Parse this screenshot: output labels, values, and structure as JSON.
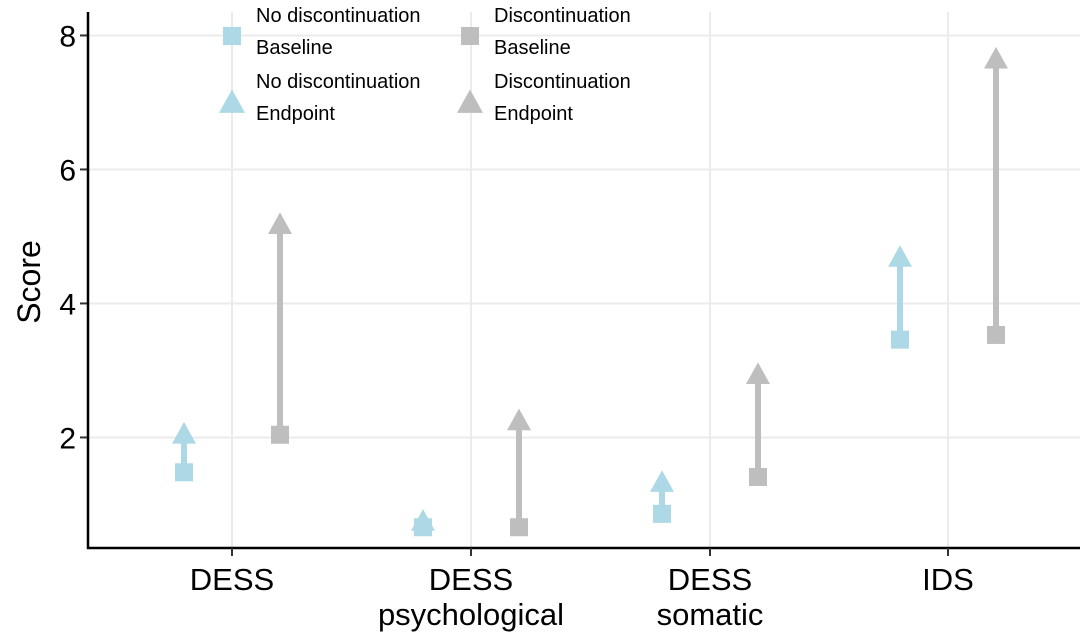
{
  "chart_data": {
    "type": "scatter",
    "title": "",
    "xlabel": "",
    "ylabel": "Score",
    "ylim": [
      0.35,
      8.35
    ],
    "yticks": [
      2,
      4,
      6,
      8
    ],
    "categories": [
      {
        "lines": [
          "DESS"
        ]
      },
      {
        "lines": [
          "DESS",
          "psychological"
        ]
      },
      {
        "lines": [
          "DESS",
          "somatic"
        ]
      },
      {
        "lines": [
          "IDS"
        ]
      }
    ],
    "grid": true,
    "legend_position": "top-left",
    "series": [
      {
        "name": "No discontinuation",
        "color": "#add8e6",
        "baseline": [
          1.48,
          0.66,
          0.86,
          3.46
        ],
        "endpoint": [
          2.03,
          0.73,
          1.31,
          4.67
        ]
      },
      {
        "name": "Discontinuation",
        "color": "#bebebe",
        "baseline": [
          2.04,
          0.66,
          1.41,
          3.53
        ],
        "endpoint": [
          5.16,
          2.23,
          2.92,
          7.63
        ]
      }
    ],
    "legend": [
      {
        "series": 0,
        "marker": "square",
        "lines": [
          "No discontinuation",
          "Baseline"
        ]
      },
      {
        "series": 1,
        "marker": "square",
        "lines": [
          "Discontinuation",
          "Baseline"
        ]
      },
      {
        "series": 0,
        "marker": "triangle",
        "lines": [
          "No discontinuation",
          "Endpoint"
        ]
      },
      {
        "series": 1,
        "marker": "triangle",
        "lines": [
          "Discontinuation",
          "Endpoint"
        ]
      }
    ]
  }
}
